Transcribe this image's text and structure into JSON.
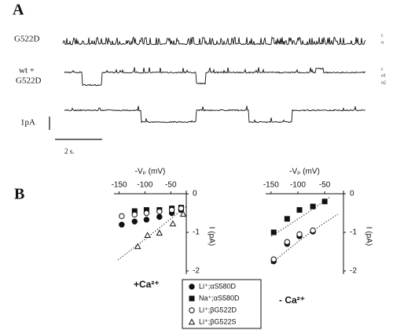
{
  "panel_a": {
    "label": "A",
    "trace_labels": [
      [
        "G522D"
      ],
      [
        "wt +",
        "G522D"
      ]
    ],
    "state_labels": [
      [
        "c",
        "o"
      ],
      [
        "c",
        "o1",
        "o2"
      ]
    ],
    "current_scale": "1pA",
    "time_scale": "2 s."
  },
  "panel_b_label": "B",
  "chart_data": [
    {
      "type": "scatter",
      "x_label": "-Vₚ (mV)",
      "y_label": "I (pA)",
      "annotation": "+Ca²⁺",
      "xlim": [
        -160,
        -20
      ],
      "ylim": [
        -2,
        0
      ],
      "xticks": [
        -150,
        -100,
        -50
      ],
      "yticks": [
        0,
        -1,
        -2
      ],
      "series": [
        {
          "name": "Li⁺;αS580D",
          "marker": "circle",
          "filled": true,
          "color": "#111111",
          "x": [
            -145,
            -120,
            -97,
            -72,
            -48,
            -30
          ],
          "values": [
            -0.8,
            -0.72,
            -0.67,
            -0.6,
            -0.5,
            -0.42
          ]
        },
        {
          "name": "Na⁺;αS580D",
          "marker": "square",
          "filled": true,
          "color": "#111111",
          "x": [
            -120,
            -97,
            -72,
            -48,
            -30
          ],
          "values": [
            -0.45,
            -0.42,
            -0.42,
            -0.38,
            -0.36
          ]
        },
        {
          "name": "Li⁺;βG522D",
          "marker": "circle",
          "filled": false,
          "color": "#111111",
          "x": [
            -145,
            -120,
            -97,
            -72,
            -48,
            -30
          ],
          "values": [
            -0.58,
            -0.54,
            -0.5,
            -0.46,
            -0.42,
            -0.38
          ]
        },
        {
          "name": "Li⁺;βG522S",
          "marker": "triangle",
          "filled": false,
          "color": "#111111",
          "x": [
            -114,
            -95,
            -72,
            -46,
            -26
          ],
          "values": [
            -1.37,
            -1.08,
            -1.02,
            -0.78,
            -0.53
          ]
        }
      ]
    },
    {
      "type": "scatter",
      "x_label": "-Vₚ (mV)",
      "y_label": "I (pA)",
      "annotation": "- Ca²⁺",
      "xlim": [
        -160,
        -15
      ],
      "ylim": [
        -2,
        0
      ],
      "xticks": [
        -150,
        -100,
        -50
      ],
      "yticks": [
        0,
        -1,
        -2
      ],
      "series": [
        {
          "marker": "circle",
          "filled": true,
          "color": "#111111",
          "x": [
            -145,
            -120,
            -97,
            -72
          ],
          "values": [
            -1.75,
            -1.3,
            -1.1,
            -0.98
          ]
        },
        {
          "marker": "square",
          "filled": true,
          "color": "#111111",
          "x": [
            -145,
            -120,
            -97,
            -72,
            -50
          ],
          "values": [
            -1.0,
            -0.65,
            -0.42,
            -0.33,
            -0.2
          ]
        },
        {
          "marker": "circle",
          "filled": false,
          "color": "#111111",
          "x": [
            -145,
            -120,
            -97,
            -72
          ],
          "values": [
            -1.7,
            -1.25,
            -1.05,
            -0.95
          ]
        }
      ]
    }
  ]
}
